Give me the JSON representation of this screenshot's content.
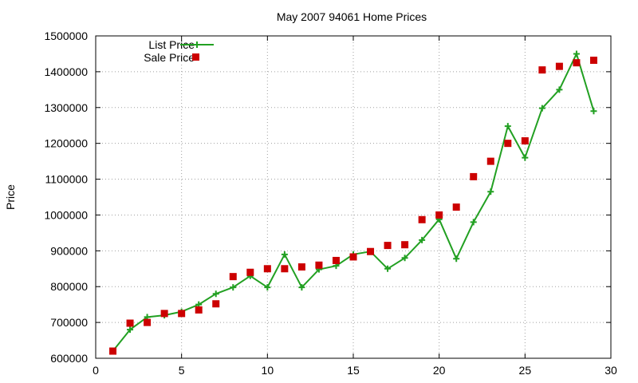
{
  "chart_data": {
    "type": "line",
    "title": "May 2007 94061 Home Prices",
    "xlabel": "",
    "ylabel": "Price",
    "xlim": [
      0,
      30
    ],
    "ylim": [
      600000,
      1500000
    ],
    "xticks": [
      0,
      5,
      10,
      15,
      20,
      25,
      30
    ],
    "yticks": [
      600000,
      700000,
      800000,
      900000,
      1000000,
      1100000,
      1200000,
      1300000,
      1400000,
      1500000
    ],
    "grid": true,
    "legend_position": "top-left",
    "series": [
      {
        "name": "List Price",
        "style": "line-with-plus-markers",
        "color": "#22a022",
        "x": [
          1,
          2,
          3,
          4,
          5,
          6,
          7,
          8,
          9,
          10,
          11,
          12,
          13,
          14,
          15,
          16,
          17,
          18,
          19,
          20,
          21,
          22,
          23,
          24,
          25,
          26,
          27,
          28,
          29
        ],
        "y": [
          620000,
          680000,
          715000,
          720000,
          730000,
          750000,
          780000,
          798000,
          830000,
          798000,
          890000,
          798000,
          848000,
          858000,
          890000,
          898000,
          850000,
          880000,
          930000,
          988000,
          878000,
          980000,
          1065000,
          1248000,
          1160000,
          1298000,
          1350000,
          1450000,
          1290000
        ]
      },
      {
        "name": "Sale Price",
        "style": "square-markers",
        "color": "#cc0000",
        "x": [
          1,
          2,
          3,
          4,
          5,
          6,
          7,
          8,
          9,
          10,
          11,
          12,
          13,
          14,
          15,
          16,
          17,
          18,
          19,
          20,
          21,
          22,
          23,
          24,
          25,
          26,
          27,
          28,
          29
        ],
        "y": [
          620000,
          698000,
          700000,
          725000,
          725000,
          735000,
          752000,
          828000,
          840000,
          850000,
          850000,
          855000,
          860000,
          873000,
          883000,
          898000,
          915000,
          917000,
          987000,
          1000000,
          1022000,
          1107000,
          1150000,
          1200000,
          1207000,
          1405000,
          1415000,
          1425000,
          1432000
        ]
      }
    ]
  }
}
